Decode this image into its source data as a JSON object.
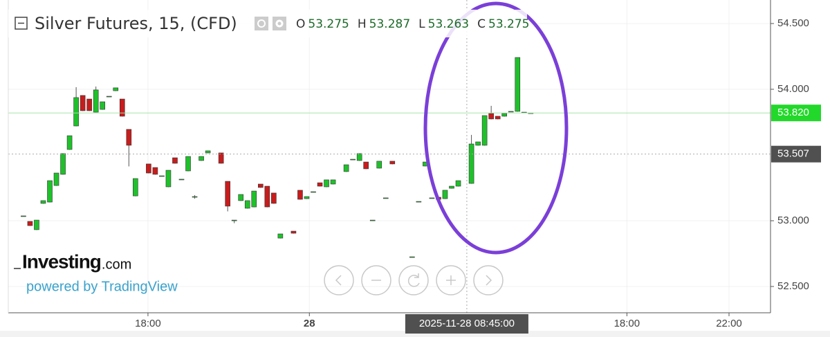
{
  "chart_data": {
    "type": "candlestick",
    "title": "Silver Futures, 15, (CFD)",
    "ohlc_header": {
      "labels": [
        "O",
        "H",
        "L",
        "C"
      ],
      "values": [
        53.275,
        53.287,
        53.263,
        53.275
      ]
    },
    "brand": {
      "name": "Investing",
      "suffix": ".com",
      "tagline": "powered by TradingView"
    },
    "categories": [
      null,
      null,
      null,
      null,
      null,
      null,
      null,
      null,
      null,
      null,
      null,
      null,
      null,
      null,
      null,
      null,
      null,
      null,
      null,
      null,
      null,
      null,
      null,
      null,
      null,
      null,
      null,
      null,
      null,
      null,
      null,
      null,
      null,
      null,
      null,
      null,
      null,
      null,
      null,
      null,
      null,
      null,
      null,
      null,
      null,
      null,
      null,
      null,
      null,
      null,
      null,
      null,
      null,
      null,
      null,
      null,
      null,
      null,
      null,
      null,
      null,
      null,
      null,
      null,
      null,
      null,
      null,
      null,
      null,
      null,
      null,
      null,
      null,
      null,
      null,
      null,
      null,
      null
    ],
    "open": [
      53.037,
      52.995,
      52.932,
      53.132,
      53.142,
      53.268,
      53.353,
      53.542,
      53.721,
      53.953,
      53.926,
      53.826,
      53.847,
      53.947,
      53.989,
      53.926,
      53.695,
      53.189,
      null,
      53.432,
      53.405,
      53.342,
      53.258,
      53.479,
      53.316,
      53.379,
      53.184,
      53.458,
      53.516,
      null,
      53.516,
      53.3,
      53.005,
      53.153,
      53.095,
      53.105,
      53.279,
      53.263,
      53.211,
      52.868,
      null,
      52.921,
      53.232,
      53.168,
      53.221,
      53.289,
      53.258,
      53.279,
      null,
      53.374,
      53.468,
      53.458,
      53.447,
      53.005,
      53.4,
      53.174,
      53.453,
      null,
      null,
      52.726,
      53.147,
      53.416,
      53.174,
      53.179,
      53.168,
      53.247,
      53.263,
      null,
      53.284,
      53.574,
      53.574,
      53.816,
      53.795,
      53.795,
      53.832,
      53.832,
      53.826,
      53.82
    ],
    "high": [
      53.037,
      52.995,
      53.005,
      53.153,
      53.305,
      53.363,
      53.511,
      53.647,
      54.016,
      53.953,
      53.926,
      54.021,
      53.905,
      53.947,
      54.011,
      53.926,
      53.695,
      53.321,
      null,
      53.432,
      53.405,
      53.342,
      53.384,
      53.479,
      53.316,
      53.489,
      53.195,
      53.489,
      53.532,
      null,
      53.516,
      53.3,
      53.005,
      53.2,
      53.153,
      53.226,
      53.279,
      53.263,
      53.211,
      52.9,
      null,
      52.921,
      53.232,
      53.184,
      53.221,
      53.289,
      53.311,
      53.311,
      null,
      53.426,
      53.468,
      53.511,
      53.447,
      53.005,
      53.453,
      53.174,
      53.453,
      null,
      null,
      52.726,
      53.147,
      53.447,
      53.174,
      53.179,
      53.232,
      53.263,
      53.305,
      null,
      53.653,
      53.6,
      53.8,
      53.874,
      53.795,
      53.816,
      53.832,
      54.242,
      53.826,
      53.82
    ],
    "low": [
      53.037,
      52.963,
      52.932,
      53.132,
      53.142,
      53.268,
      53.353,
      53.542,
      53.721,
      53.837,
      53.837,
      53.826,
      53.847,
      53.947,
      53.989,
      53.795,
      53.416,
      53.189,
      null,
      53.363,
      53.353,
      53.342,
      53.258,
      53.437,
      53.316,
      53.379,
      53.17,
      53.458,
      53.516,
      null,
      53.437,
      53.074,
      52.984,
      53.153,
      53.095,
      53.105,
      53.253,
      53.105,
      53.132,
      52.868,
      null,
      52.905,
      53.163,
      53.168,
      53.221,
      53.263,
      53.258,
      53.279,
      null,
      53.374,
      53.468,
      53.458,
      53.395,
      53.005,
      53.4,
      53.174,
      53.432,
      null,
      null,
      52.726,
      53.147,
      53.416,
      53.174,
      53.163,
      53.168,
      53.247,
      53.263,
      null,
      53.284,
      53.574,
      53.574,
      53.774,
      53.774,
      53.795,
      53.832,
      53.832,
      53.826,
      53.82
    ],
    "close": [
      53.037,
      52.963,
      53.005,
      53.153,
      53.305,
      53.363,
      53.511,
      53.647,
      53.937,
      53.837,
      53.837,
      53.995,
      53.905,
      53.947,
      54.011,
      53.795,
      53.574,
      53.321,
      null,
      53.363,
      53.353,
      53.342,
      53.384,
      53.437,
      53.316,
      53.489,
      53.184,
      53.489,
      53.532,
      null,
      53.437,
      53.111,
      53.005,
      53.2,
      53.153,
      53.226,
      53.253,
      53.105,
      53.132,
      52.9,
      null,
      52.905,
      53.163,
      53.184,
      53.221,
      53.263,
      53.311,
      53.311,
      null,
      53.426,
      53.468,
      53.511,
      53.395,
      53.005,
      53.453,
      53.174,
      53.432,
      null,
      null,
      52.726,
      53.147,
      53.447,
      53.174,
      53.163,
      53.232,
      53.263,
      53.305,
      null,
      53.584,
      53.6,
      53.8,
      53.774,
      53.774,
      53.816,
      53.832,
      54.242,
      53.826,
      53.82
    ],
    "up_color": "#1fc12b",
    "down_color": "#c81c1c",
    "xlim": [
      -2.3,
      113.4
    ],
    "xticks": [
      {
        "value": 18.9,
        "label": "18:00"
      },
      {
        "value": 43.4,
        "label": "28"
      },
      {
        "value": 91.6,
        "label": "18:00"
      },
      {
        "value": 107.1,
        "label": "22:00"
      }
    ],
    "ylim": [
      52.3,
      54.679
    ],
    "yticks": [
      {
        "value": 54.5,
        "label": "54.500"
      },
      {
        "value": 54.0,
        "label": "54.000"
      },
      {
        "value": 53.0,
        "label": "53.000"
      },
      {
        "value": 52.5,
        "label": "52.500"
      }
    ],
    "last_price": {
      "value": 53.82,
      "label": "53.820",
      "color": "#22d82a"
    },
    "crosshair": {
      "x": 67.3,
      "x_label": "2025-11-28 08:45:00",
      "y": 53.507
    },
    "grid": true
  }
}
